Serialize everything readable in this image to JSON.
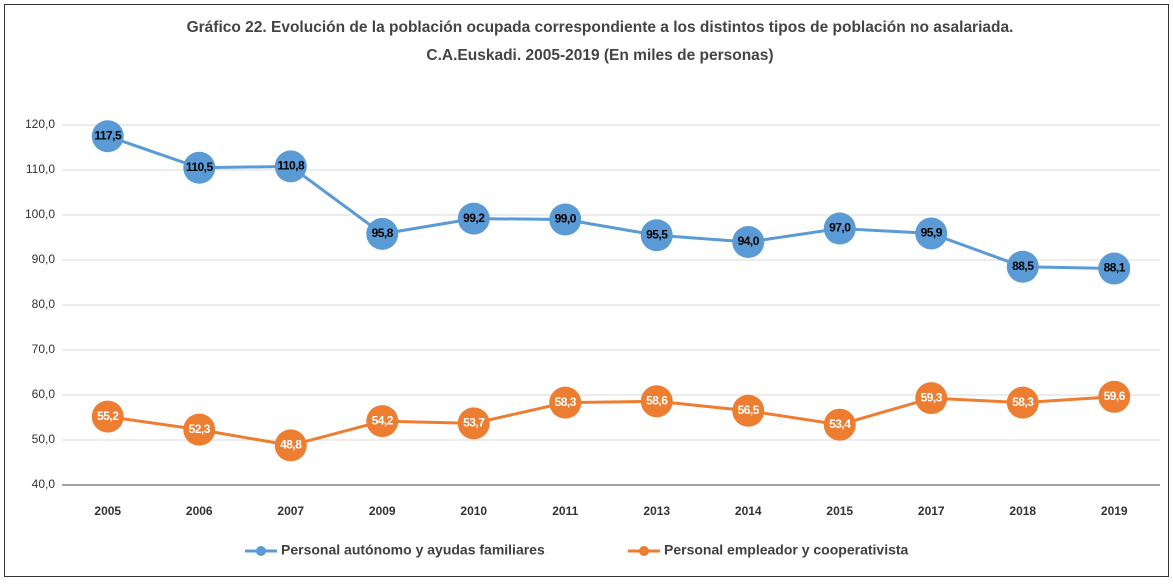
{
  "chart_data": {
    "type": "line",
    "title": [
      "Gráfico 22. Evolución de la población ocupada correspondiente a los distintos tipos de población no asalariada.",
      "C.A.Euskadi. 2005-2019 (En miles de personas)"
    ],
    "categories": [
      "2005",
      "2006",
      "2007",
      "2009",
      "2010",
      "2011",
      "2013",
      "2014",
      "2015",
      "2017",
      "2018",
      "2019"
    ],
    "series": [
      {
        "name": "Personal autónomo y ayudas familiares",
        "color": "#5b9bd5",
        "label_color": "#000000",
        "values": [
          117.5,
          110.5,
          110.8,
          95.8,
          99.2,
          99.0,
          95.5,
          94.0,
          97.0,
          95.9,
          88.5,
          88.1
        ],
        "value_labels": [
          "117,5",
          "110,5",
          "110,8",
          "95,8",
          "99,2",
          "99,0",
          "95,5",
          "94,0",
          "97,0",
          "95,9",
          "88,5",
          "88,1"
        ]
      },
      {
        "name": "Personal empleador y cooperativista",
        "color": "#ed7d31",
        "label_color": "#ffffff",
        "values": [
          55.2,
          52.3,
          48.8,
          54.2,
          53.7,
          58.3,
          58.6,
          56.5,
          53.4,
          59.3,
          58.3,
          59.6
        ],
        "value_labels": [
          "55,2",
          "52,3",
          "48,8",
          "54,2",
          "53,7",
          "58,3",
          "58,6",
          "56,5",
          "53,4",
          "59,3",
          "58,3",
          "59,6"
        ]
      }
    ],
    "ylim": [
      40,
      120
    ],
    "yticks": [
      {
        "value": 40,
        "label": "40,0"
      },
      {
        "value": 50,
        "label": "50,0"
      },
      {
        "value": 60,
        "label": "60,0"
      },
      {
        "value": 70,
        "label": "70,0"
      },
      {
        "value": 80,
        "label": "80,0"
      },
      {
        "value": 90,
        "label": "90,0"
      },
      {
        "value": 100,
        "label": "100,0"
      },
      {
        "value": 110,
        "label": "110,0"
      },
      {
        "value": 120,
        "label": "120,0"
      }
    ],
    "grid": true,
    "legend": "bottom"
  }
}
